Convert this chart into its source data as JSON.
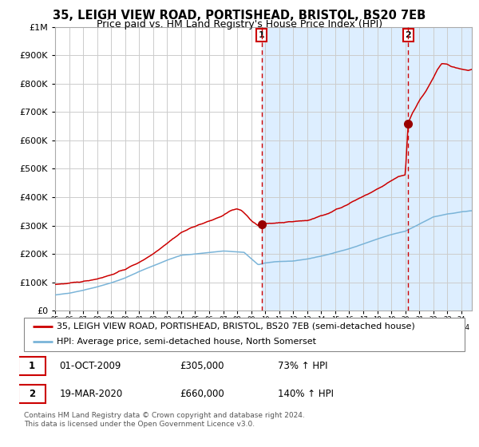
{
  "title": "35, LEIGH VIEW ROAD, PORTISHEAD, BRISTOL, BS20 7EB",
  "subtitle": "Price paid vs. HM Land Registry's House Price Index (HPI)",
  "legend_line1": "35, LEIGH VIEW ROAD, PORTISHEAD, BRISTOL, BS20 7EB (semi-detached house)",
  "legend_line2": "HPI: Average price, semi-detached house, North Somerset",
  "footnote": "Contains HM Land Registry data © Crown copyright and database right 2024.\nThis data is licensed under the Open Government Licence v3.0.",
  "annotation1_label": "1",
  "annotation1_date": "01-OCT-2009",
  "annotation1_price": "£305,000",
  "annotation1_hpi": "73% ↑ HPI",
  "annotation2_label": "2",
  "annotation2_date": "19-MAR-2020",
  "annotation2_price": "£660,000",
  "annotation2_hpi": "140% ↑ HPI",
  "hpi_color": "#7ab4d8",
  "price_color": "#cc0000",
  "dot_color": "#990000",
  "vline_color": "#cc0000",
  "shade_color": "#ddeeff",
  "plot_bg_color": "#ffffff",
  "grid_color": "#cccccc",
  "ylim": [
    0,
    1000000
  ],
  "xlim_start": 1995.0,
  "xlim_end": 2024.75,
  "purchase1_x": 2009.75,
  "purchase1_y": 305000,
  "purchase2_x": 2020.21,
  "purchase2_y": 660000,
  "title_fontsize": 10.5,
  "subtitle_fontsize": 9,
  "axis_fontsize": 8,
  "legend_fontsize": 8,
  "footnote_fontsize": 6.5,
  "annotation_fontsize": 8.5
}
